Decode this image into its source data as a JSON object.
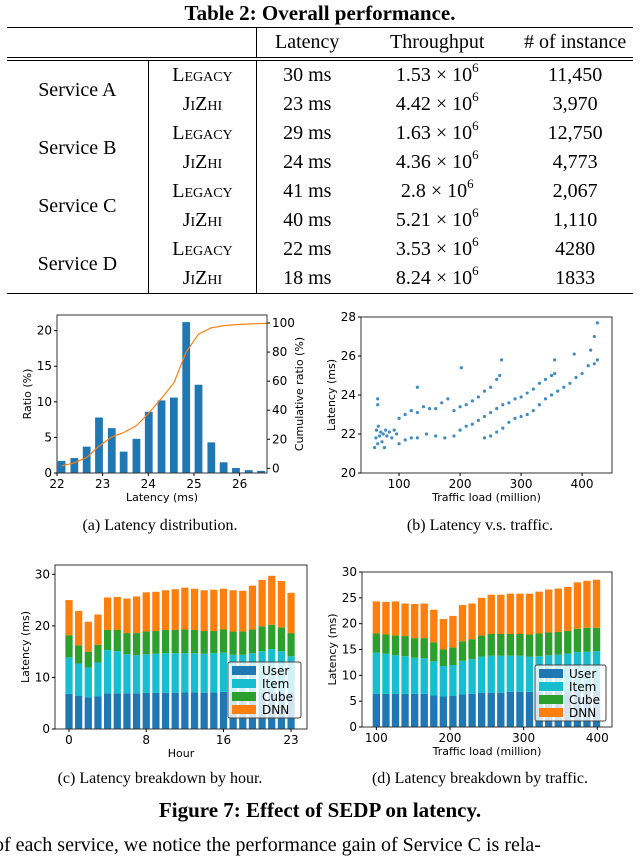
{
  "table": {
    "title": "Table 2: Overall performance.",
    "headers": [
      "Latency",
      "Throughput",
      "# of instance"
    ],
    "rows": [
      {
        "service": "Service A",
        "variant": "Legacy",
        "latency": "30 ms",
        "tp_mantissa": "1.53 × 10",
        "tp_exp": "6",
        "instances": "11,450"
      },
      {
        "service": "",
        "variant": "JiZhi",
        "latency": "23 ms",
        "tp_mantissa": "4.42 × 10",
        "tp_exp": "6",
        "instances": "3,970"
      },
      {
        "service": "Service B",
        "variant": "Legacy",
        "latency": "29 ms",
        "tp_mantissa": "1.63 × 10",
        "tp_exp": "6",
        "instances": "12,750"
      },
      {
        "service": "",
        "variant": "JiZhi",
        "latency": "24 ms",
        "tp_mantissa": "4.36 × 10",
        "tp_exp": "6",
        "instances": "4,773"
      },
      {
        "service": "Service C",
        "variant": "Legacy",
        "latency": "41 ms",
        "tp_mantissa": "2.8 × 10",
        "tp_exp": "6",
        "instances": "2,067"
      },
      {
        "service": "",
        "variant": "JiZhi",
        "latency": "40 ms",
        "tp_mantissa": "5.21 × 10",
        "tp_exp": "6",
        "instances": "1,110"
      },
      {
        "service": "Service D",
        "variant": "Legacy",
        "latency": "22 ms",
        "tp_mantissa": "3.53 × 10",
        "tp_exp": "6",
        "instances": "4280"
      },
      {
        "service": "",
        "variant": "JiZhi",
        "latency": "18 ms",
        "tp_mantissa": "8.24 × 10",
        "tp_exp": "6",
        "instances": "1833"
      }
    ]
  },
  "figure": {
    "caption": "Figure 7: Effect of SEDP on latency.",
    "subcaptions": [
      "(a)  Latency distribution.",
      "(b)  Latency v.s. traffic.",
      "(c)  Latency breakdown by hour.",
      "(d)  Latency breakdown by traffic."
    ]
  },
  "body_text": "of each service, we notice the performance gain of Service C is rela-",
  "chart_data": [
    {
      "type": "bar",
      "xlabel": "Latency (ms)",
      "ylabel": "Ratio (%)",
      "y2label": "Cumulative ratio (%)",
      "xlim": [
        22,
        26.6
      ],
      "ylim": [
        0,
        22.2
      ],
      "y2lim": [
        -3.2,
        105.5
      ],
      "xticks": [
        22,
        23,
        24,
        25,
        26
      ],
      "yticks": [
        0,
        5,
        10,
        15,
        20
      ],
      "y2ticks": [
        0,
        20,
        40,
        60,
        80,
        100
      ],
      "x": [
        22.1,
        22.38,
        22.65,
        22.92,
        23.2,
        23.46,
        23.74,
        24.01,
        24.29,
        24.56,
        24.83,
        25.1,
        25.38,
        25.65,
        25.92,
        26.2,
        26.47
      ],
      "values": [
        1.7,
        2.1,
        3.7,
        7.8,
        6.3,
        3.0,
        4.8,
        8.6,
        10.2,
        10.6,
        21.2,
        12.4,
        4.3,
        1.5,
        0.7,
        0.4,
        0.3
      ],
      "cumulative": [
        1.7,
        3.8,
        7.5,
        15.3,
        21.6,
        24.6,
        29.4,
        38.0,
        48.2,
        58.8,
        80.0,
        92.4,
        96.7,
        98.2,
        98.9,
        99.3,
        99.6
      ],
      "colors": {
        "bars": "#1f77b4",
        "line": "#ff7f0e"
      },
      "grid": false
    },
    {
      "type": "scatter",
      "xlabel": "Traffic load (million)",
      "ylabel": "Latency (ms)",
      "xlim": [
        37.6,
        449
      ],
      "ylim": [
        20,
        28
      ],
      "xticks": [
        100,
        200,
        300,
        400
      ],
      "yticks": [
        20,
        22,
        24,
        26,
        28
      ],
      "color": "#1f77b4",
      "grid": false,
      "points": [
        [
          60,
          21.3
        ],
        [
          62,
          21.8
        ],
        [
          63,
          22.2
        ],
        [
          65,
          21.5
        ],
        [
          66,
          22.4
        ],
        [
          68,
          21.9
        ],
        [
          70,
          22.1
        ],
        [
          72,
          21.6
        ],
        [
          74,
          22.0
        ],
        [
          76,
          21.3
        ],
        [
          78,
          22.2
        ],
        [
          80,
          21.9
        ],
        [
          84,
          22.1
        ],
        [
          88,
          21.8
        ],
        [
          92,
          22.2
        ],
        [
          96,
          22.0
        ],
        [
          100,
          22.8
        ],
        [
          110,
          23.0
        ],
        [
          120,
          23.2
        ],
        [
          130,
          23.1
        ],
        [
          140,
          23.4
        ],
        [
          150,
          23.3
        ],
        [
          160,
          23.3
        ],
        [
          170,
          23.6
        ],
        [
          180,
          23.8
        ],
        [
          190,
          23.2
        ],
        [
          200,
          23.4
        ],
        [
          210,
          23.5
        ],
        [
          220,
          23.7
        ],
        [
          230,
          23.9
        ],
        [
          240,
          24.2
        ],
        [
          250,
          24.4
        ],
        [
          260,
          24.8
        ],
        [
          265,
          25.0
        ],
        [
          100,
          21.5
        ],
        [
          110,
          21.7
        ],
        [
          120,
          21.8
        ],
        [
          130,
          21.8
        ],
        [
          145,
          22.0
        ],
        [
          160,
          21.9
        ],
        [
          175,
          21.8
        ],
        [
          190,
          21.9
        ],
        [
          200,
          22.2
        ],
        [
          210,
          22.4
        ],
        [
          220,
          22.5
        ],
        [
          230,
          22.7
        ],
        [
          240,
          22.9
        ],
        [
          250,
          23.1
        ],
        [
          260,
          23.3
        ],
        [
          270,
          23.5
        ],
        [
          280,
          23.6
        ],
        [
          290,
          23.8
        ],
        [
          300,
          23.9
        ],
        [
          310,
          24.1
        ],
        [
          320,
          24.3
        ],
        [
          330,
          24.6
        ],
        [
          340,
          24.8
        ],
        [
          350,
          25.0
        ],
        [
          355,
          25.1
        ],
        [
          240,
          21.8
        ],
        [
          250,
          21.9
        ],
        [
          260,
          22.1
        ],
        [
          270,
          22.3
        ],
        [
          280,
          22.6
        ],
        [
          290,
          22.8
        ],
        [
          300,
          22.9
        ],
        [
          310,
          23.0
        ],
        [
          320,
          23.2
        ],
        [
          330,
          23.5
        ],
        [
          340,
          23.8
        ],
        [
          350,
          24.0
        ],
        [
          360,
          24.2
        ],
        [
          370,
          24.4
        ],
        [
          380,
          24.6
        ],
        [
          390,
          24.9
        ],
        [
          400,
          25.1
        ],
        [
          410,
          25.5
        ],
        [
          420,
          25.6
        ],
        [
          425,
          25.8
        ],
        [
          65,
          23.8
        ],
        [
          65,
          23.5
        ],
        [
          130,
          24.4
        ],
        [
          202,
          25.4
        ],
        [
          268,
          25.8
        ],
        [
          387,
          26.1
        ],
        [
          414,
          26.3
        ],
        [
          420,
          27.0
        ],
        [
          425,
          27.7
        ],
        [
          355,
          25.8
        ]
      ]
    },
    {
      "type": "bar",
      "stacked": true,
      "xlabel": "Hour",
      "ylabel": "Latency (ms)",
      "xlim": [
        -1.45,
        24.65
      ],
      "ylim": [
        0,
        31.8
      ],
      "xticks": [
        0,
        8,
        16,
        23
      ],
      "yticks": [
        0,
        10,
        20,
        30
      ],
      "x": [
        0,
        1,
        2,
        3,
        4,
        5,
        6,
        7,
        8,
        9,
        10,
        11,
        12,
        13,
        14,
        15,
        16,
        17,
        18,
        19,
        20,
        21,
        22,
        23
      ],
      "series": [
        {
          "name": "User",
          "color": "#1f77b4",
          "values": [
            6.8,
            6.4,
            6.1,
            6.3,
            6.9,
            6.9,
            6.9,
            6.9,
            7.0,
            7.0,
            7.0,
            7.0,
            7.1,
            7.1,
            7.0,
            7.1,
            7.2,
            7.1,
            7.1,
            7.1,
            7.2,
            7.3,
            7.2,
            7.0
          ]
        },
        {
          "name": "Item",
          "color": "#17becf",
          "values": [
            7.1,
            6.3,
            5.8,
            6.6,
            8.4,
            8.2,
            7.6,
            7.4,
            7.5,
            7.6,
            7.7,
            7.7,
            7.6,
            7.6,
            7.6,
            7.6,
            7.6,
            7.3,
            7.3,
            7.6,
            7.9,
            8.2,
            7.9,
            7.1
          ]
        },
        {
          "name": "Cube",
          "color": "#2ca02c",
          "values": [
            4.3,
            3.5,
            3.1,
            3.4,
            3.9,
            4.1,
            4.1,
            4.3,
            4.4,
            4.4,
            4.5,
            4.5,
            4.6,
            4.5,
            4.4,
            4.3,
            4.5,
            4.5,
            4.5,
            4.6,
            4.8,
            4.7,
            4.6,
            4.5
          ]
        },
        {
          "name": "DNN",
          "color": "#ff7f0e",
          "values": [
            6.8,
            6.7,
            5.8,
            5.9,
            6.3,
            6.4,
            6.7,
            7.1,
            7.6,
            7.6,
            7.7,
            7.9,
            8.1,
            8.0,
            7.9,
            8.0,
            7.9,
            8.0,
            7.9,
            8.5,
            9.0,
            9.5,
            9.0,
            7.8
          ]
        }
      ],
      "legend": "lower-right",
      "grid": false
    },
    {
      "type": "bar",
      "stacked": true,
      "xlabel": "Traffic load (million)",
      "ylabel": "Latency (ms)",
      "xlim": [
        80.5,
        420
      ],
      "ylim": [
        0,
        30
      ],
      "xticks": [
        100,
        200,
        300,
        400
      ],
      "yticks": [
        0,
        5,
        10,
        15,
        20,
        25,
        30
      ],
      "x": [
        100,
        113,
        126,
        139,
        152,
        165,
        178,
        191,
        204,
        217,
        230,
        243,
        256,
        269,
        282,
        295,
        308,
        321,
        334,
        347,
        360,
        373,
        386,
        399
      ],
      "series": [
        {
          "name": "User",
          "color": "#1f77b4",
          "values": [
            6.4,
            6.4,
            6.4,
            6.4,
            6.4,
            6.4,
            6.1,
            5.9,
            6.0,
            6.3,
            6.4,
            6.6,
            6.6,
            6.6,
            6.8,
            6.8,
            6.8,
            6.8,
            6.8,
            6.9,
            7.0,
            7.0,
            7.0,
            7.0
          ]
        },
        {
          "name": "Item",
          "color": "#17becf",
          "values": [
            8.0,
            7.8,
            7.5,
            7.3,
            7.0,
            6.9,
            6.6,
            5.9,
            6.0,
            6.5,
            6.7,
            7.0,
            7.2,
            7.2,
            7.0,
            7.0,
            6.8,
            6.9,
            7.1,
            7.1,
            7.2,
            7.5,
            7.6,
            7.7
          ]
        },
        {
          "name": "Cube",
          "color": "#2ca02c",
          "values": [
            3.7,
            3.7,
            3.8,
            3.9,
            3.8,
            3.9,
            3.7,
            3.2,
            3.4,
            3.8,
            3.9,
            4.1,
            4.2,
            4.2,
            4.2,
            4.2,
            4.3,
            4.4,
            4.4,
            4.4,
            4.4,
            4.5,
            4.6,
            4.5
          ]
        },
        {
          "name": "DNN",
          "color": "#ff7f0e",
          "values": [
            6.2,
            6.3,
            6.6,
            6.3,
            6.6,
            6.7,
            6.3,
            5.9,
            6.1,
            7.0,
            6.9,
            7.3,
            7.6,
            7.6,
            7.8,
            7.8,
            7.9,
            8.1,
            8.3,
            8.4,
            8.5,
            9.0,
            9.1,
            9.3
          ]
        }
      ],
      "legend": "lower-right",
      "grid": false
    }
  ]
}
